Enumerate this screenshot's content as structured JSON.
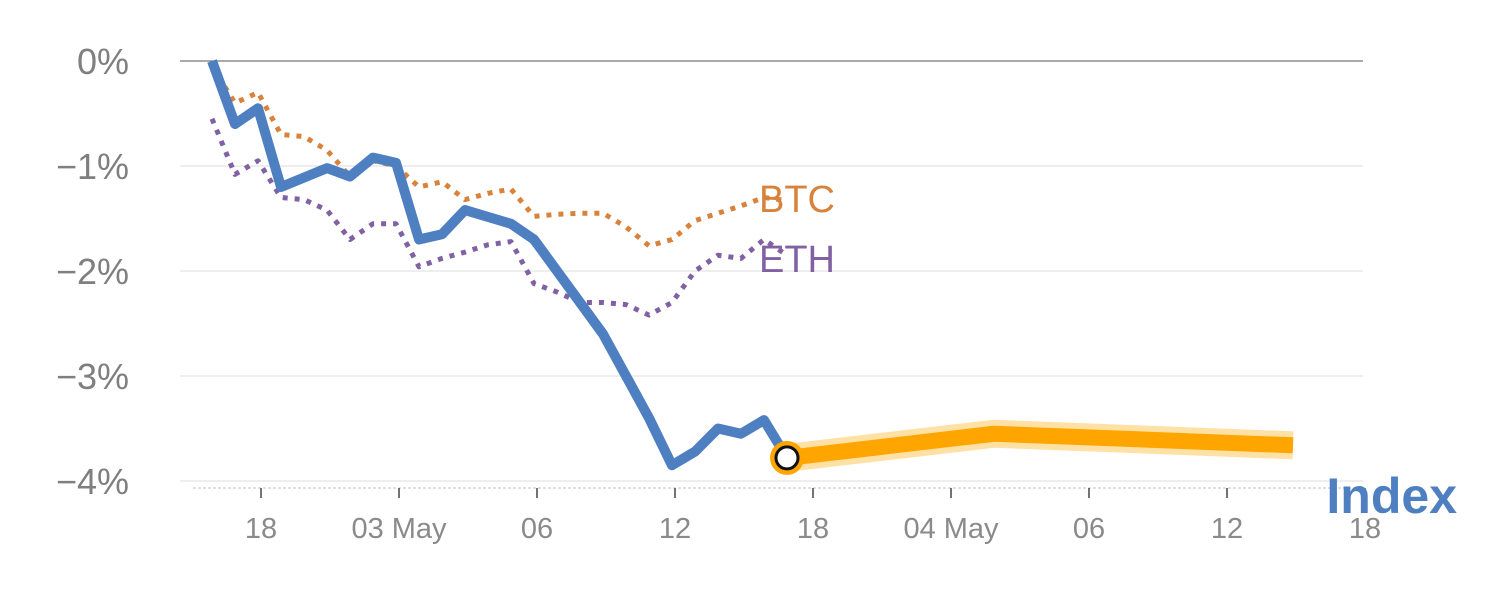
{
  "chart_data": {
    "type": "line",
    "y_ticks": [
      "0%",
      "−1%",
      "−2%",
      "−3%",
      "−4%"
    ],
    "y_tick_values": [
      0,
      -1,
      -2,
      -3,
      -4
    ],
    "ylim": [
      -4.05,
      0.05
    ],
    "x_ticks": [
      "18",
      "03 May",
      "06",
      "12",
      "18",
      "04 May",
      "06",
      "12",
      "18"
    ],
    "grid": true,
    "colors": {
      "index": "#4e7fc1",
      "btc": "#d9823b",
      "eth": "#8160a3",
      "forecast": "#ffa500",
      "forecast_band": "#ffd98f",
      "grid": "#e3e3e3",
      "zero_line": "#777777",
      "tick_text": "#808080"
    },
    "series": [
      {
        "name": "Index",
        "style": "solid",
        "x_index": [
          0,
          1,
          2,
          3,
          5,
          6,
          7,
          8,
          9,
          10,
          11,
          13,
          14,
          16,
          17,
          19,
          20,
          21,
          22,
          23,
          24,
          25
        ],
        "values": [
          0.0,
          -0.6,
          -0.45,
          -1.2,
          -1.02,
          -1.1,
          -0.92,
          -0.97,
          -1.7,
          -1.65,
          -1.42,
          -1.55,
          -1.7,
          -2.3,
          -2.6,
          -3.4,
          -3.85,
          -3.72,
          -3.5,
          -3.55,
          -3.42,
          -3.78
        ]
      },
      {
        "name": "BTC",
        "style": "dotted",
        "x_index": [
          0,
          1,
          2,
          3,
          4,
          5,
          6,
          7,
          8,
          9,
          10,
          11,
          12,
          13,
          14,
          15,
          16,
          17,
          18,
          19,
          20,
          21,
          22,
          23,
          24,
          25
        ],
        "values": [
          -0.05,
          -0.4,
          -0.3,
          -0.7,
          -0.72,
          -0.85,
          -1.1,
          -0.95,
          -1.0,
          -1.2,
          -1.15,
          -1.32,
          -1.26,
          -1.22,
          -1.48,
          -1.46,
          -1.45,
          -1.45,
          -1.58,
          -1.76,
          -1.7,
          -1.52,
          -1.45,
          -1.38,
          -1.3,
          -1.33
        ]
      },
      {
        "name": "ETH",
        "style": "dotted",
        "x_index": [
          0,
          1,
          2,
          3,
          4,
          5,
          6,
          7,
          8,
          9,
          10,
          11,
          12,
          13,
          14,
          15,
          16,
          17,
          18,
          19,
          20,
          21,
          22,
          23,
          24,
          25
        ],
        "values": [
          -0.55,
          -1.08,
          -0.95,
          -1.3,
          -1.32,
          -1.42,
          -1.7,
          -1.55,
          -1.55,
          -1.96,
          -1.88,
          -1.82,
          -1.75,
          -1.72,
          -2.12,
          -2.2,
          -2.3,
          -2.3,
          -2.32,
          -2.42,
          -2.3,
          -2.0,
          -1.85,
          -1.88,
          -1.7,
          -1.85
        ]
      },
      {
        "name": "Index forecast",
        "style": "band",
        "x_index": [
          25,
          34,
          47
        ],
        "values": [
          -3.78,
          -3.55,
          -3.66
        ]
      }
    ],
    "marker": {
      "series": "Index",
      "x_index": 25,
      "value": -3.78
    },
    "series_labels": {
      "btc": "BTC",
      "eth": "ETH",
      "index": "Index"
    }
  }
}
